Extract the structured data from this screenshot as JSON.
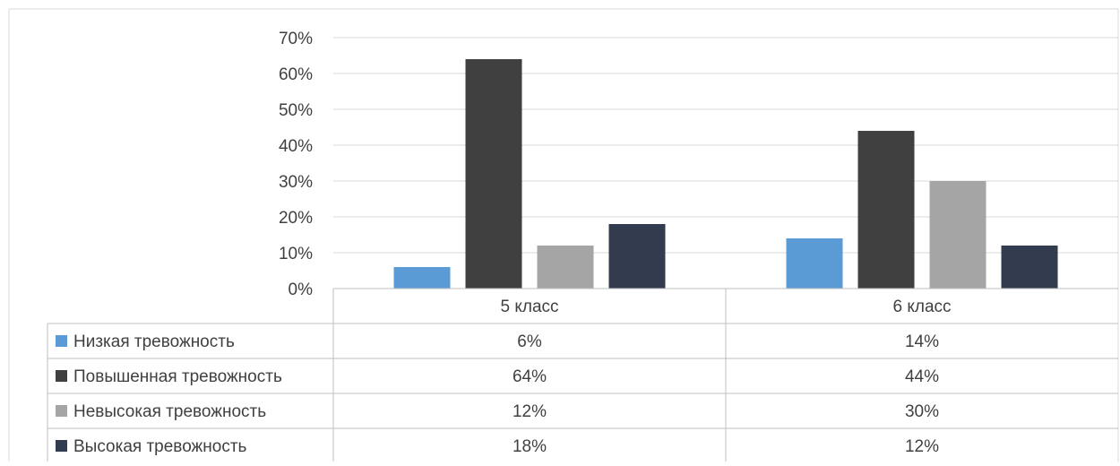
{
  "chart_data": {
    "type": "bar",
    "categories": [
      "5 класс",
      "6 класс"
    ],
    "series": [
      {
        "name": "Низкая тревожность",
        "values": [
          6,
          14
        ],
        "labels": [
          "6%",
          "14%"
        ],
        "color": "#5b9bd5"
      },
      {
        "name": "Повышенная  тревожность",
        "values": [
          64,
          44
        ],
        "labels": [
          "64%",
          "44%"
        ],
        "color": "#404040"
      },
      {
        "name": "Невысокая  тревожность",
        "values": [
          12,
          30
        ],
        "labels": [
          "12%",
          "30%"
        ],
        "color": "#a5a5a5"
      },
      {
        "name": "Высокая тревожность",
        "values": [
          18,
          12
        ],
        "labels": [
          "18%",
          "12%"
        ],
        "color": "#323c4e"
      }
    ],
    "yticks": [
      "0%",
      "10%",
      "20%",
      "30%",
      "40%",
      "50%",
      "60%",
      "70%"
    ],
    "ylim": [
      0,
      70
    ],
    "grid": true,
    "legend": "data table below chart",
    "title": "",
    "xlabel": "",
    "ylabel": ""
  },
  "colors": {
    "gridline": "#d9d9d9",
    "table_border": "#bfbfbf",
    "text": "#404040",
    "frame": "#d9d9d9"
  }
}
